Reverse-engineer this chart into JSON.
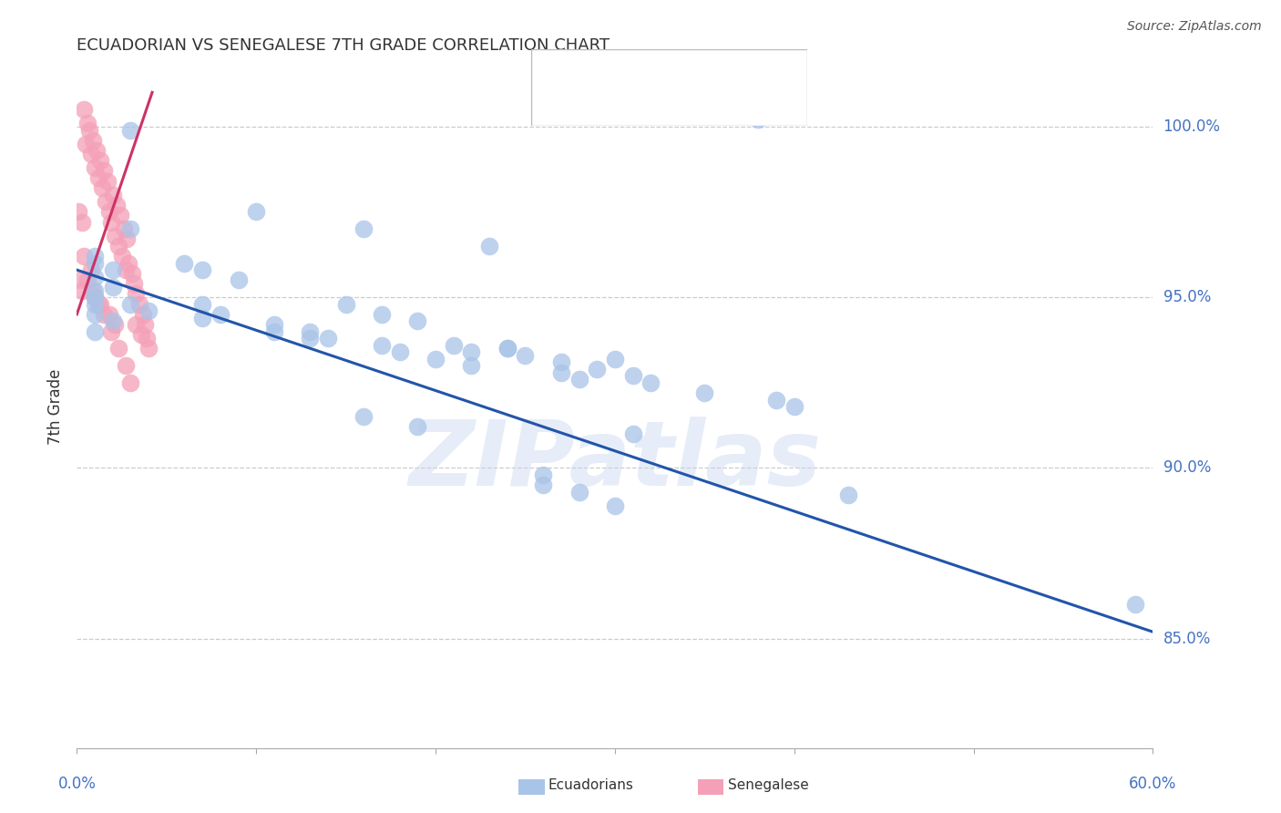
{
  "title": "ECUADORIAN VS SENEGALESE 7TH GRADE CORRELATION CHART",
  "source": "Source: ZipAtlas.com",
  "ylabel": "7th Grade",
  "ylabel_ticks": [
    "85.0%",
    "90.0%",
    "95.0%",
    "100.0%"
  ],
  "ylabel_values": [
    0.85,
    0.9,
    0.95,
    1.0
  ],
  "xlim": [
    0.0,
    0.6
  ],
  "ylim": [
    0.818,
    1.018
  ],
  "blue_color": "#A8C4E8",
  "pink_color": "#F4A0B8",
  "blue_line_color": "#2255AA",
  "pink_line_color": "#CC3366",
  "watermark": "ZIPatlas",
  "blue_dots_x": [
    0.38,
    0.03,
    0.1,
    0.16,
    0.23,
    0.03,
    0.06,
    0.07,
    0.09,
    0.01,
    0.01,
    0.02,
    0.01,
    0.01,
    0.02,
    0.01,
    0.01,
    0.01,
    0.02,
    0.01,
    0.07,
    0.08,
    0.11,
    0.13,
    0.15,
    0.17,
    0.19,
    0.03,
    0.04,
    0.07,
    0.11,
    0.14,
    0.17,
    0.18,
    0.2,
    0.22,
    0.24,
    0.25,
    0.27,
    0.29,
    0.31,
    0.32,
    0.13,
    0.21,
    0.22,
    0.35,
    0.39,
    0.4,
    0.24,
    0.3,
    0.27,
    0.28,
    0.16,
    0.19,
    0.31,
    0.26,
    0.59,
    0.26,
    0.28,
    0.43,
    0.3
  ],
  "blue_dots_y": [
    1.002,
    0.999,
    0.975,
    0.97,
    0.965,
    0.97,
    0.96,
    0.958,
    0.955,
    0.952,
    0.962,
    0.958,
    0.96,
    0.956,
    0.953,
    0.95,
    0.948,
    0.945,
    0.943,
    0.94,
    0.948,
    0.945,
    0.942,
    0.94,
    0.948,
    0.945,
    0.943,
    0.948,
    0.946,
    0.944,
    0.94,
    0.938,
    0.936,
    0.934,
    0.932,
    0.93,
    0.935,
    0.933,
    0.931,
    0.929,
    0.927,
    0.925,
    0.938,
    0.936,
    0.934,
    0.922,
    0.92,
    0.918,
    0.935,
    0.932,
    0.928,
    0.926,
    0.915,
    0.912,
    0.91,
    0.895,
    0.86,
    0.898,
    0.893,
    0.892,
    0.889
  ],
  "pink_dots_x": [
    0.005,
    0.008,
    0.01,
    0.012,
    0.014,
    0.016,
    0.018,
    0.019,
    0.021,
    0.023,
    0.025,
    0.027,
    0.004,
    0.006,
    0.007,
    0.009,
    0.011,
    0.013,
    0.015,
    0.017,
    0.02,
    0.022,
    0.024,
    0.026,
    0.028,
    0.002,
    0.003,
    0.01,
    0.013,
    0.018,
    0.021,
    0.001,
    0.003,
    0.029,
    0.031,
    0.032,
    0.033,
    0.035,
    0.037,
    0.038,
    0.039,
    0.04,
    0.006,
    0.009,
    0.012,
    0.015,
    0.019,
    0.023,
    0.027,
    0.03,
    0.033,
    0.036,
    0.004,
    0.008
  ],
  "pink_dots_y": [
    0.995,
    0.992,
    0.988,
    0.985,
    0.982,
    0.978,
    0.975,
    0.972,
    0.968,
    0.965,
    0.962,
    0.958,
    1.005,
    1.001,
    0.999,
    0.996,
    0.993,
    0.99,
    0.987,
    0.984,
    0.98,
    0.977,
    0.974,
    0.97,
    0.967,
    0.955,
    0.952,
    0.95,
    0.948,
    0.945,
    0.942,
    0.975,
    0.972,
    0.96,
    0.957,
    0.954,
    0.951,
    0.948,
    0.945,
    0.942,
    0.938,
    0.935,
    0.955,
    0.952,
    0.948,
    0.945,
    0.94,
    0.935,
    0.93,
    0.925,
    0.942,
    0.939,
    0.962,
    0.958
  ],
  "blue_trendline_x": [
    0.0,
    0.6
  ],
  "blue_trendline_y": [
    0.958,
    0.852
  ],
  "pink_trendline_x": [
    0.0,
    0.042
  ],
  "pink_trendline_y": [
    0.945,
    1.01
  ]
}
